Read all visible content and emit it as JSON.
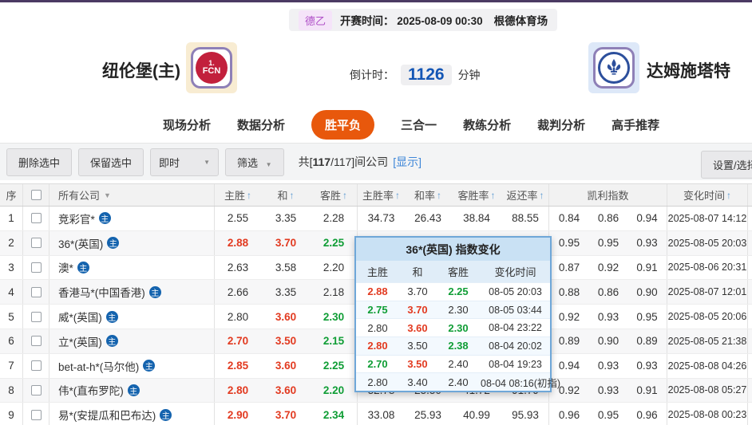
{
  "colors": {
    "accent_orange": "#e8580c",
    "odds_up_red": "#e23a20",
    "odds_down_green": "#0f9d35",
    "link_blue": "#3e86d8",
    "countdown_blue": "#1356b5",
    "popup_border_blue": "#6fa7d8",
    "league_badge_purple": "#b050c8"
  },
  "match": {
    "league": "德乙",
    "kickoff_label": "开赛时间：",
    "kickoff_time": "2025-08-09 00:30",
    "venue": "根德体育场",
    "home_team": "纽伦堡(主)",
    "away_team": "达姆施塔特",
    "home_logo_line1": "1.",
    "home_logo_line2": "FCN",
    "countdown_label": "倒计时：",
    "countdown_value": "1126",
    "countdown_unit": "分钟"
  },
  "tabs": [
    {
      "key": "live-analysis",
      "label": "现场分析",
      "active": false
    },
    {
      "key": "data-analysis",
      "label": "数据分析",
      "active": false
    },
    {
      "key": "win-draw-loss",
      "label": "胜平负",
      "active": true
    },
    {
      "key": "three-in-one",
      "label": "三合一",
      "active": false
    },
    {
      "key": "coach-analysis",
      "label": "教练分析",
      "active": false
    },
    {
      "key": "referee-analysis",
      "label": "裁判分析",
      "active": false
    },
    {
      "key": "expert-picks",
      "label": "高手推荐",
      "active": false
    }
  ],
  "toolbar": {
    "delete_selected": "删除选中",
    "keep_selected": "保留选中",
    "instant": "即时",
    "filter": "筛选",
    "count_prefix": "共[",
    "count_total": "117",
    "count_rest": "/117]间公司",
    "show_link": "[显示]",
    "settings": "设置/选择"
  },
  "table": {
    "headers": {
      "seq": "序",
      "company": "所有公司",
      "home": "主胜",
      "draw": "和",
      "away": "客胜",
      "home_rate": "主胜率",
      "draw_rate": "和率",
      "away_rate": "客胜率",
      "return_rate": "返还率",
      "kelly": "凯利指数",
      "change_time": "变化时间"
    },
    "rows": [
      {
        "num": "1",
        "company": "竞彩官*",
        "home": {
          "v": "2.55",
          "c": "k"
        },
        "draw": {
          "v": "3.35",
          "c": "k"
        },
        "away": {
          "v": "2.28",
          "c": "k"
        },
        "rates": [
          "34.73",
          "26.43",
          "38.84",
          "88.55"
        ],
        "kelly": [
          "0.84",
          "0.86",
          "0.94"
        ],
        "time": "2025-08-07 14:12"
      },
      {
        "num": "2",
        "company": "36*(英国)",
        "home": {
          "v": "2.88",
          "c": "r"
        },
        "draw": {
          "v": "3.70",
          "c": "r"
        },
        "away": {
          "v": "2.25",
          "c": "g"
        },
        "rates": [
          "",
          "",
          "",
          ""
        ],
        "kelly": [
          "0.95",
          "0.95",
          "0.93"
        ],
        "time": "2025-08-05 20:03"
      },
      {
        "num": "3",
        "company": "澳*",
        "home": {
          "v": "2.63",
          "c": "k"
        },
        "draw": {
          "v": "3.58",
          "c": "k"
        },
        "away": {
          "v": "2.20",
          "c": "k"
        },
        "rates": [
          "",
          "",
          "",
          ""
        ],
        "kelly": [
          "0.87",
          "0.92",
          "0.91"
        ],
        "time": "2025-08-06 20:31"
      },
      {
        "num": "4",
        "company": "香港马*(中国香港)",
        "home": {
          "v": "2.66",
          "c": "k"
        },
        "draw": {
          "v": "3.35",
          "c": "k"
        },
        "away": {
          "v": "2.18",
          "c": "k"
        },
        "rates": [
          "",
          "",
          "",
          ""
        ],
        "kelly": [
          "0.88",
          "0.86",
          "0.90"
        ],
        "time": "2025-08-07 12:01"
      },
      {
        "num": "5",
        "company": "威*(英国)",
        "home": {
          "v": "2.80",
          "c": "k"
        },
        "draw": {
          "v": "3.60",
          "c": "r"
        },
        "away": {
          "v": "2.30",
          "c": "g"
        },
        "rates": [
          "",
          "",
          "",
          ""
        ],
        "kelly": [
          "0.92",
          "0.93",
          "0.95"
        ],
        "time": "2025-08-05 20:06"
      },
      {
        "num": "6",
        "company": "立*(英国)",
        "home": {
          "v": "2.70",
          "c": "r"
        },
        "draw": {
          "v": "3.50",
          "c": "r"
        },
        "away": {
          "v": "2.15",
          "c": "g"
        },
        "rates": [
          "",
          "",
          "",
          ""
        ],
        "kelly": [
          "0.89",
          "0.90",
          "0.89"
        ],
        "time": "2025-08-05 21:38"
      },
      {
        "num": "7",
        "company": "bet-at-h*(马尔他)",
        "home": {
          "v": "2.85",
          "c": "r"
        },
        "draw": {
          "v": "3.60",
          "c": "r"
        },
        "away": {
          "v": "2.25",
          "c": "g"
        },
        "rates": [
          "",
          "",
          "",
          ""
        ],
        "kelly": [
          "0.94",
          "0.93",
          "0.93"
        ],
        "time": "2025-08-08 04:26"
      },
      {
        "num": "8",
        "company": "伟*(直布罗陀)",
        "home": {
          "v": "2.80",
          "c": "r"
        },
        "draw": {
          "v": "3.60",
          "c": "r"
        },
        "away": {
          "v": "2.20",
          "c": "g"
        },
        "rates": [
          "32.78",
          "25.50",
          "41.72",
          "91.79"
        ],
        "kelly": [
          "0.92",
          "0.93",
          "0.91"
        ],
        "time": "2025-08-08 05:27"
      },
      {
        "num": "9",
        "company": "易*(安提瓜和巴布达)",
        "home": {
          "v": "2.90",
          "c": "r"
        },
        "draw": {
          "v": "3.70",
          "c": "r"
        },
        "away": {
          "v": "2.34",
          "c": "g"
        },
        "rates": [
          "33.08",
          "25.93",
          "40.99",
          "95.93"
        ],
        "kelly": [
          "0.96",
          "0.95",
          "0.96"
        ],
        "time": "2025-08-08 00:23"
      }
    ]
  },
  "popup": {
    "title": "36*(英国) 指数变化",
    "headers": {
      "home": "主胜",
      "draw": "和",
      "away": "客胜",
      "time": "变化时间"
    },
    "rows": [
      {
        "odds": [
          {
            "v": "2.88",
            "c": "r"
          },
          {
            "v": "3.70",
            "c": "k"
          },
          {
            "v": "2.25",
            "c": "g"
          }
        ],
        "time": "08-05 20:03"
      },
      {
        "odds": [
          {
            "v": "2.75",
            "c": "g"
          },
          {
            "v": "3.70",
            "c": "r"
          },
          {
            "v": "2.30",
            "c": "k"
          }
        ],
        "time": "08-05 03:44"
      },
      {
        "odds": [
          {
            "v": "2.80",
            "c": "k"
          },
          {
            "v": "3.60",
            "c": "r"
          },
          {
            "v": "2.30",
            "c": "g"
          }
        ],
        "time": "08-04 23:22"
      },
      {
        "odds": [
          {
            "v": "2.80",
            "c": "r"
          },
          {
            "v": "3.50",
            "c": "k"
          },
          {
            "v": "2.38",
            "c": "g"
          }
        ],
        "time": "08-04 20:02"
      },
      {
        "odds": [
          {
            "v": "2.70",
            "c": "g"
          },
          {
            "v": "3.50",
            "c": "r"
          },
          {
            "v": "2.40",
            "c": "k"
          }
        ],
        "time": "08-04 19:23"
      },
      {
        "odds": [
          {
            "v": "2.80",
            "c": "k"
          },
          {
            "v": "3.40",
            "c": "k"
          },
          {
            "v": "2.40",
            "c": "k"
          }
        ],
        "time": "08-04 08:16(初指)"
      }
    ]
  },
  "icons": {
    "home_page": "主",
    "sort_up": "↑",
    "dropdown": "▼"
  }
}
